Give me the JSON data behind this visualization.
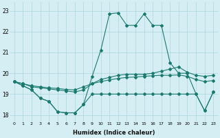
{
  "xlabel": "Humidex (Indice chaleur)",
  "ylabel": "",
  "xlim": [
    -0.5,
    23.5
  ],
  "ylim": [
    17.7,
    23.4
  ],
  "yticks": [
    18,
    19,
    20,
    21,
    22,
    23
  ],
  "xticks": [
    0,
    1,
    2,
    3,
    4,
    5,
    6,
    7,
    8,
    9,
    10,
    11,
    12,
    13,
    14,
    15,
    16,
    17,
    18,
    19,
    20,
    21,
    22,
    23
  ],
  "bg_color": "#d4eef4",
  "grid_color": "#aed4dc",
  "line_color": "#1a7a6e",
  "line1_y": [
    19.6,
    19.4,
    19.2,
    18.8,
    18.65,
    18.15,
    18.1,
    18.1,
    18.5,
    19.85,
    21.1,
    22.85,
    22.9,
    22.3,
    22.3,
    22.85,
    22.3,
    22.3,
    20.5,
    20.0,
    20.0,
    19.0,
    18.2,
    19.1
  ],
  "line2_y": [
    19.6,
    19.5,
    19.35,
    19.3,
    19.25,
    19.2,
    19.15,
    19.1,
    19.2,
    19.5,
    19.7,
    19.8,
    19.9,
    19.95,
    19.95,
    19.95,
    20.0,
    20.1,
    20.2,
    20.3,
    20.05,
    19.9,
    19.85,
    19.9
  ],
  "line3_y": [
    19.6,
    19.5,
    19.4,
    19.35,
    19.3,
    19.27,
    19.22,
    19.2,
    19.35,
    19.5,
    19.6,
    19.68,
    19.75,
    19.8,
    19.82,
    19.85,
    19.88,
    19.9,
    19.9,
    19.92,
    19.85,
    19.7,
    19.6,
    19.65
  ],
  "line4_y": [
    19.6,
    19.4,
    19.2,
    18.8,
    18.65,
    18.15,
    18.1,
    18.1,
    18.5,
    19.0,
    19.0,
    19.0,
    19.0,
    19.0,
    19.0,
    19.0,
    19.0,
    19.0,
    19.0,
    19.0,
    19.0,
    19.0,
    18.2,
    19.1
  ]
}
